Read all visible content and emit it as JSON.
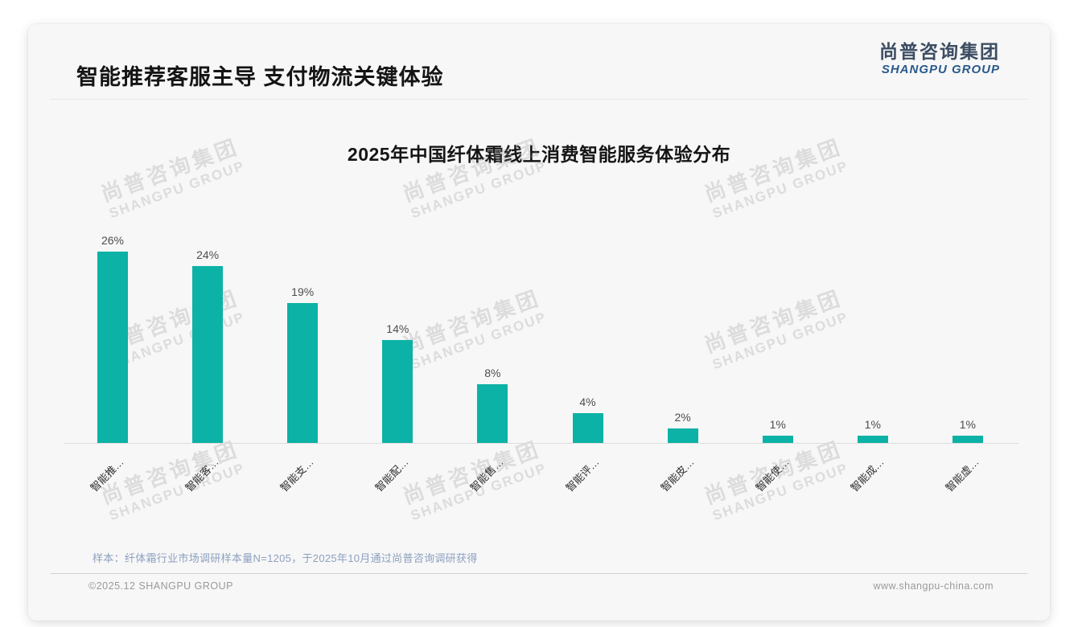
{
  "page": {
    "header": {
      "title": "智能推荐客服主导 支付物流关键体验"
    },
    "logo": {
      "cn": "尚普咨询集团",
      "en": "SHANGPU GROUP"
    },
    "watermark": {
      "cn": "尚普咨询集团",
      "en": "SHANGPU GROUP"
    },
    "note": "样本：纤体霜行业市场调研样本量N=1205，于2025年10月通过尚普咨询调研获得",
    "footer": {
      "left": "©2025.12 SHANGPU GROUP",
      "right": "www.shangpu-china.com"
    }
  },
  "chart_data": {
    "type": "bar",
    "title": "2025年中国纤体霜线上消费智能服务体验分布",
    "categories": [
      "智能推…",
      "智能客…",
      "智能支…",
      "智能配…",
      "智能售…",
      "智能评…",
      "智能皮…",
      "智能使…",
      "智能成…",
      "智能虚…"
    ],
    "values": [
      26,
      24,
      19,
      14,
      8,
      4,
      2,
      1,
      1,
      1
    ],
    "data_labels": [
      "26%",
      "24%",
      "19%",
      "14%",
      "8%",
      "4%",
      "2%",
      "1%",
      "1%",
      "1%"
    ],
    "unit": "%",
    "bar_color": "#0cb2a6",
    "xlabel": "",
    "ylabel": "",
    "ylim": [
      0,
      28
    ],
    "grid": false,
    "legend_position": "none",
    "x_tick_rotation": 45
  }
}
